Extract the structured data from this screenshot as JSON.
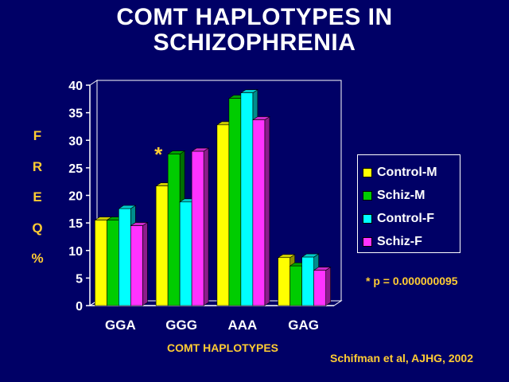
{
  "slide": {
    "title_line1": "COMT HAPLOTYPES IN",
    "title_line2": "SCHIZOPHRENIA",
    "y_label_letters": [
      "F",
      "R",
      "E",
      "Q",
      "%"
    ],
    "x_axis_title": "COMT HAPLOTYPES",
    "p_note": "* p = 0.000000095",
    "citation": "Schifman et al, AJHG, 2002"
  },
  "chart_data": {
    "type": "bar",
    "title": "COMT HAPLOTYPES IN SCHIZOPHRENIA",
    "xlabel": "COMT HAPLOTYPES",
    "ylabel": "FREQ %",
    "ylim": [
      0,
      40
    ],
    "yticks": [
      "0",
      "5",
      "10",
      "15",
      "20",
      "25",
      "30",
      "35",
      "40"
    ],
    "categories": [
      "GGA",
      "GGG",
      "AAA",
      "GAG"
    ],
    "series": [
      {
        "name": "Control-M",
        "color": "#ffff00",
        "values": [
          15.5,
          21.7,
          32.8,
          8.7
        ]
      },
      {
        "name": "Schiz-M",
        "color": "#00cc00",
        "values": [
          15.5,
          27.5,
          37.6,
          7.2
        ]
      },
      {
        "name": "Control-F",
        "color": "#00ffff",
        "values": [
          17.6,
          18.8,
          38.6,
          8.8
        ]
      },
      {
        "name": "Schiz-F",
        "color": "#ff33ff",
        "values": [
          14.5,
          28.0,
          33.7,
          6.4
        ]
      }
    ],
    "annotation": "*",
    "annotation_category": "GGG",
    "legend_position": "right",
    "grid": false
  }
}
